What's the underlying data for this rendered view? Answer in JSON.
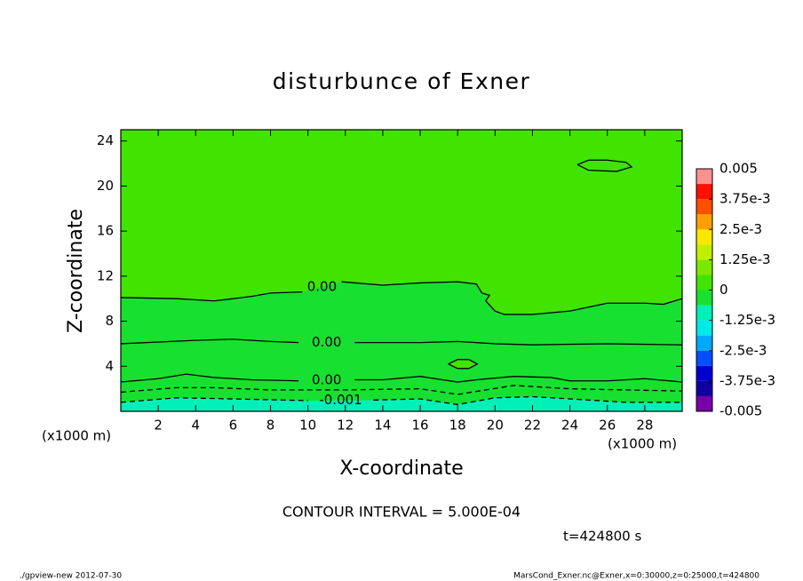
{
  "chart_data": {
    "type": "contour",
    "title": "disturbunce of Exner",
    "xlabel": "X-coordinate",
    "ylabel": "Z-coordinate",
    "x_unit": "(x1000 m)",
    "y_unit": "(x1000 m)",
    "subtitle": "CONTOUR INTERVAL = 5.000E-04",
    "time": "t=424800 s",
    "footer_left": "./gpview-new  2012-07-30",
    "footer_right": "MarsCond_Exner.nc@Exner,x=0:30000,z=0:25000,t=424800",
    "xlim": [
      0,
      30
    ],
    "ylim": [
      0,
      25
    ],
    "xticks": [
      2,
      4,
      6,
      8,
      10,
      12,
      14,
      16,
      18,
      20,
      22,
      24,
      26,
      28
    ],
    "yticks": [
      4,
      8,
      12,
      16,
      20,
      24
    ],
    "colorbar": {
      "clim": [
        -0.005,
        0.005
      ],
      "colors": [
        "#7800a8",
        "#1000a0",
        "#0000d0",
        "#0050ff",
        "#00a8ff",
        "#00e8e8",
        "#00f0b8",
        "#18e030",
        "#40e400",
        "#7ce800",
        "#c0f000",
        "#f8e800",
        "#ffa000",
        "#ff5000",
        "#ff1000",
        "#ff9090"
      ],
      "ticks": [
        -0.005,
        {
          "value": -0.00375,
          "label": "-3.75e-3"
        },
        {
          "value": -0.0025,
          "label": "-2.5e-3"
        },
        {
          "value": -0.00125,
          "label": "-1.25e-3"
        },
        0,
        {
          "value": 0.00125,
          "label": "1.25e-3"
        },
        {
          "value": 0.0025,
          "label": "2.5e-3"
        },
        {
          "value": 0.00375,
          "label": "3.75e-3"
        },
        0.005
      ]
    },
    "contours": [
      {
        "level": 0,
        "label": "0.00",
        "x": [
          0,
          3,
          5,
          7,
          8,
          9.7,
          null,
          11.8,
          14,
          16,
          18,
          19,
          19.3,
          19.7,
          19.5,
          20,
          20.5,
          22,
          24,
          26,
          28,
          29,
          30
        ],
        "y": [
          10.1,
          10,
          9.8,
          10.2,
          10.5,
          10.6,
          null,
          11.5,
          11.2,
          11.4,
          11.5,
          11.3,
          10.5,
          10.3,
          9.8,
          8.9,
          8.6,
          8.6,
          8.9,
          9.6,
          9.6,
          9.5,
          10
        ]
      },
      {
        "level": 0,
        "label": "0.00",
        "x": [
          0,
          4,
          6,
          8,
          9.5,
          null,
          12.5,
          16,
          18,
          20,
          22,
          26,
          30
        ],
        "y": [
          6,
          6.3,
          6.4,
          6.2,
          6.1,
          null,
          6.1,
          6.1,
          6.2,
          6,
          5.9,
          6,
          5.9
        ]
      },
      {
        "level": 0,
        "label": "0.00",
        "x": [
          0,
          2,
          3.5,
          5,
          7,
          9.5,
          null,
          12.5,
          14,
          16,
          18,
          19,
          21,
          23,
          24,
          26,
          28,
          30
        ],
        "y": [
          2.6,
          2.9,
          3.3,
          3,
          2.8,
          2.7,
          null,
          2.8,
          2.8,
          3.1,
          2.6,
          2.8,
          3.1,
          3,
          2.7,
          2.7,
          2.9,
          2.6
        ]
      },
      {
        "level": -0.0005,
        "x": [
          0,
          3,
          5,
          8,
          12,
          16,
          18,
          21,
          24,
          27,
          30
        ],
        "y": [
          1.7,
          2.1,
          2.1,
          1.9,
          1.9,
          2,
          1.5,
          2.3,
          2,
          1.9,
          1.8
        ]
      },
      {
        "level": -0.001,
        "label": "-0.001",
        "x": [
          0,
          3,
          6,
          10,
          null,
          13.5,
          16,
          18,
          20,
          22,
          24,
          27,
          30
        ],
        "y": [
          0.8,
          1.2,
          1.1,
          0.95,
          null,
          1,
          1.1,
          0.6,
          1.2,
          1.3,
          1.1,
          0.8,
          0.8
        ]
      },
      {
        "level": 0.0005,
        "x": [
          24.4,
          25,
          26,
          27,
          27.3,
          26.5,
          25,
          24.4
        ],
        "y": [
          21.9,
          22.3,
          22.3,
          22.1,
          21.7,
          21.3,
          21.4,
          21.9
        ]
      },
      {
        "level": 0.0005,
        "x": [
          17.5,
          18,
          18.6,
          19.05,
          18.6,
          18,
          17.5
        ],
        "y": [
          4.2,
          4.6,
          4.6,
          4.2,
          3.8,
          3.8,
          4.2
        ]
      }
    ]
  }
}
